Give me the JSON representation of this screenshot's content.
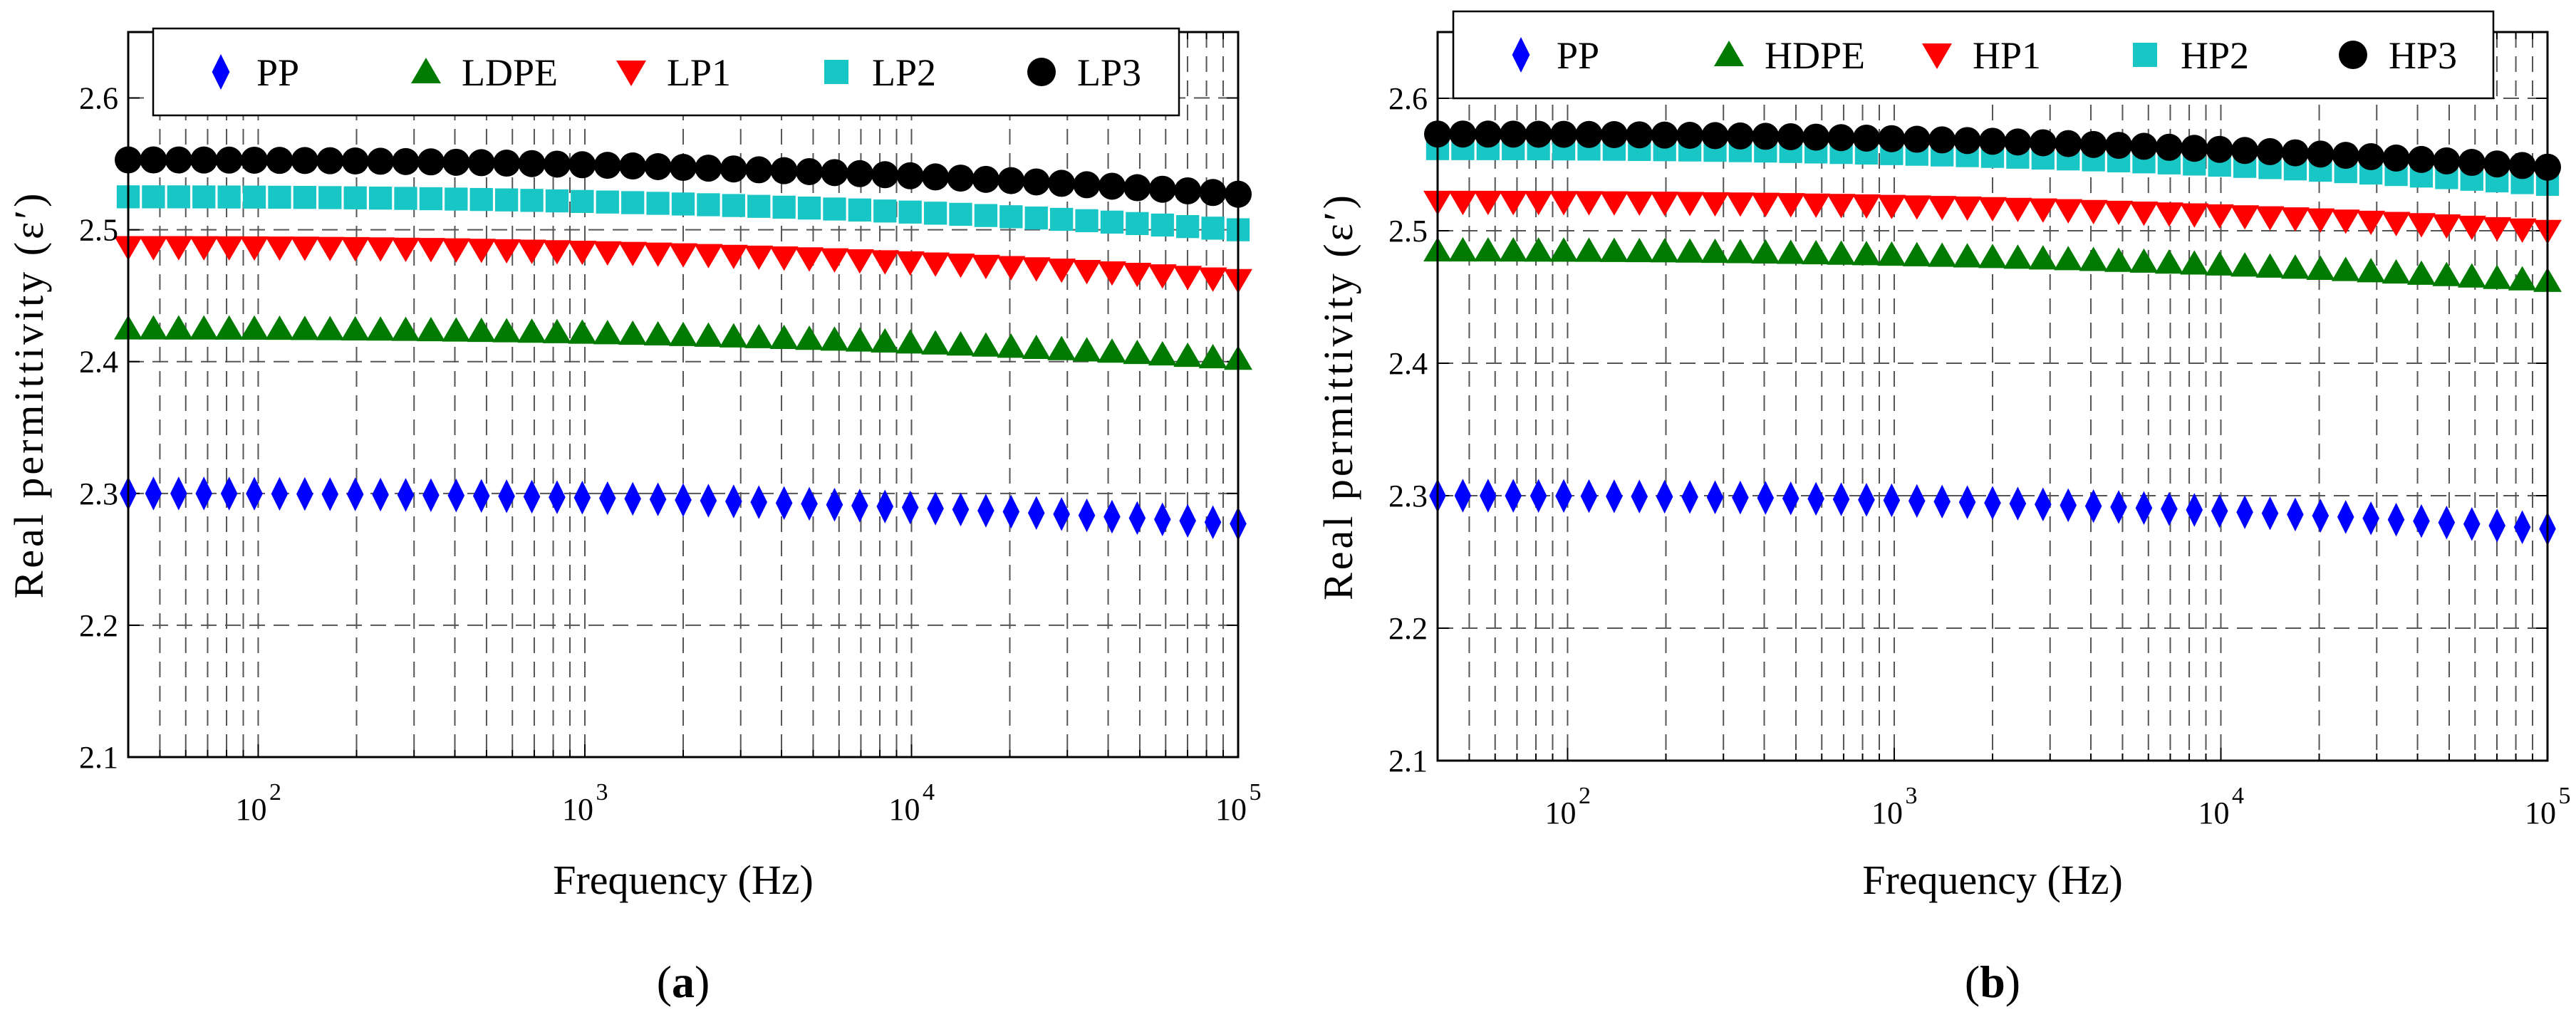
{
  "colors": {
    "PP": "#0000ff",
    "LDPE": "#007a00",
    "HDPE": "#007a00",
    "LP1": "#ff0000",
    "HP1": "#ff0000",
    "LP2": "#19c6c6",
    "HP2": "#19c6c6",
    "LP3": "#000000",
    "HP3": "#000000",
    "grid": "#555555"
  },
  "chart_data": [
    {
      "type": "scatter",
      "panel_label": "(a)",
      "panel_letter": "a",
      "xlabel": "Frequency  (Hz)",
      "ylabel": "Real permittivity (ε′)",
      "xscale": "log",
      "xlim": [
        40,
        100000
      ],
      "ylim": [
        2.1,
        2.65
      ],
      "grid": true,
      "legend": "top, horizontal",
      "x_ticks": [
        {
          "value": 100,
          "base": "10",
          "exp": "2"
        },
        {
          "value": 1000,
          "base": "10",
          "exp": "3"
        },
        {
          "value": 10000,
          "base": "10",
          "exp": "4"
        },
        {
          "value": 100000,
          "base": "10",
          "exp": "5"
        }
      ],
      "y_ticks": [
        {
          "value": 2.1,
          "label": "2.1"
        },
        {
          "value": 2.2,
          "label": "2.2"
        },
        {
          "value": 2.3,
          "label": "2.3"
        },
        {
          "value": 2.4,
          "label": "2.4"
        },
        {
          "value": 2.5,
          "label": "2.5"
        },
        {
          "value": 2.6,
          "label": "2.6"
        }
      ],
      "x_range": {
        "start_hz": 40,
        "end_hz": 100000,
        "points": 45
      },
      "series": [
        {
          "name": "PP",
          "marker": "diamond",
          "start": 2.3,
          "end": 2.277
        },
        {
          "name": "LDPE",
          "marker": "triangle-up",
          "start": 2.425,
          "end": 2.402
        },
        {
          "name": "LP1",
          "marker": "triangle-down",
          "start": 2.487,
          "end": 2.462
        },
        {
          "name": "LP2",
          "marker": "square",
          "start": 2.525,
          "end": 2.5
        },
        {
          "name": "LP3",
          "marker": "circle",
          "start": 2.553,
          "end": 2.527
        }
      ]
    },
    {
      "type": "scatter",
      "panel_label": "(b)",
      "panel_letter": "b",
      "xlabel": "Frequency  (Hz)",
      "ylabel": "Real permittivity (ε′)",
      "xscale": "log",
      "xlim": [
        40,
        100000
      ],
      "ylim": [
        2.1,
        2.65
      ],
      "grid": true,
      "legend": "top, horizontal",
      "x_ticks": [
        {
          "value": 100,
          "base": "10",
          "exp": "2"
        },
        {
          "value": 1000,
          "base": "10",
          "exp": "3"
        },
        {
          "value": 10000,
          "base": "10",
          "exp": "4"
        },
        {
          "value": 100000,
          "base": "10",
          "exp": "5"
        }
      ],
      "y_ticks": [
        {
          "value": 2.1,
          "label": "2.1"
        },
        {
          "value": 2.2,
          "label": "2.2"
        },
        {
          "value": 2.3,
          "label": "2.3"
        },
        {
          "value": 2.4,
          "label": "2.4"
        },
        {
          "value": 2.5,
          "label": "2.5"
        },
        {
          "value": 2.6,
          "label": "2.6"
        }
      ],
      "x_range": {
        "start_hz": 40,
        "end_hz": 100000,
        "points": 45
      },
      "series": [
        {
          "name": "PP",
          "marker": "diamond",
          "start": 2.3,
          "end": 2.275
        },
        {
          "name": "HDPE",
          "marker": "triangle-up",
          "start": 2.485,
          "end": 2.462
        },
        {
          "name": "HP1",
          "marker": "triangle-down",
          "start": 2.522,
          "end": 2.5
        },
        {
          "name": "HP2",
          "marker": "square",
          "start": 2.562,
          "end": 2.535
        },
        {
          "name": "HP3",
          "marker": "circle",
          "start": 2.573,
          "end": 2.548
        }
      ]
    }
  ]
}
